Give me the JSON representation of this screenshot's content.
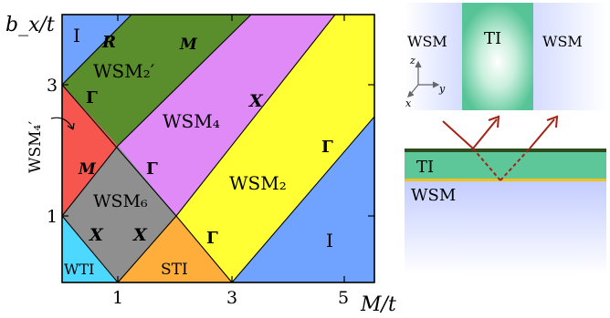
{
  "phase_diagram": {
    "y_axis_label": "b_x/t",
    "x_axis_label": "M/t",
    "y_ticks": [
      "1",
      "3"
    ],
    "x_ticks": [
      "1",
      "3",
      "5"
    ],
    "phases": {
      "I_top": "I",
      "wsm2p": "WSM₂′",
      "wsm4": "WSM₄",
      "wsm2": "WSM₂",
      "wsm4p_label": "WSM₄′",
      "wsm6": "WSM₆",
      "wti": "WTI",
      "sti": "STI",
      "I_bottom": "I"
    },
    "points": {
      "R": "R",
      "M_top": "M",
      "Gamma_left": "Γ",
      "X_upper": "X",
      "Gamma_right": "Γ",
      "M_red": "M",
      "Gamma_grey": "Γ",
      "X_grey_left": "X",
      "X_grey_right": "X",
      "Gamma_orange": "Γ"
    },
    "colors": {
      "I": "#6fa3ff",
      "WSM2p": "#5a8e2c",
      "WSM4": "#e08af7",
      "WSM2": "#ffff33",
      "WSM4p": "#f6564d",
      "WSM6": "#8f8f8f",
      "WTI": "#4dd9ff",
      "STI": "#ffad3b"
    }
  },
  "heterostructure_top": {
    "left_label": "WSM",
    "center_label": "TI",
    "right_label": "WSM",
    "axes": {
      "z": "z",
      "y": "y",
      "x": "x"
    }
  },
  "heterostructure_bottom": {
    "layer_label": "TI",
    "substrate_label": "WSM"
  }
}
